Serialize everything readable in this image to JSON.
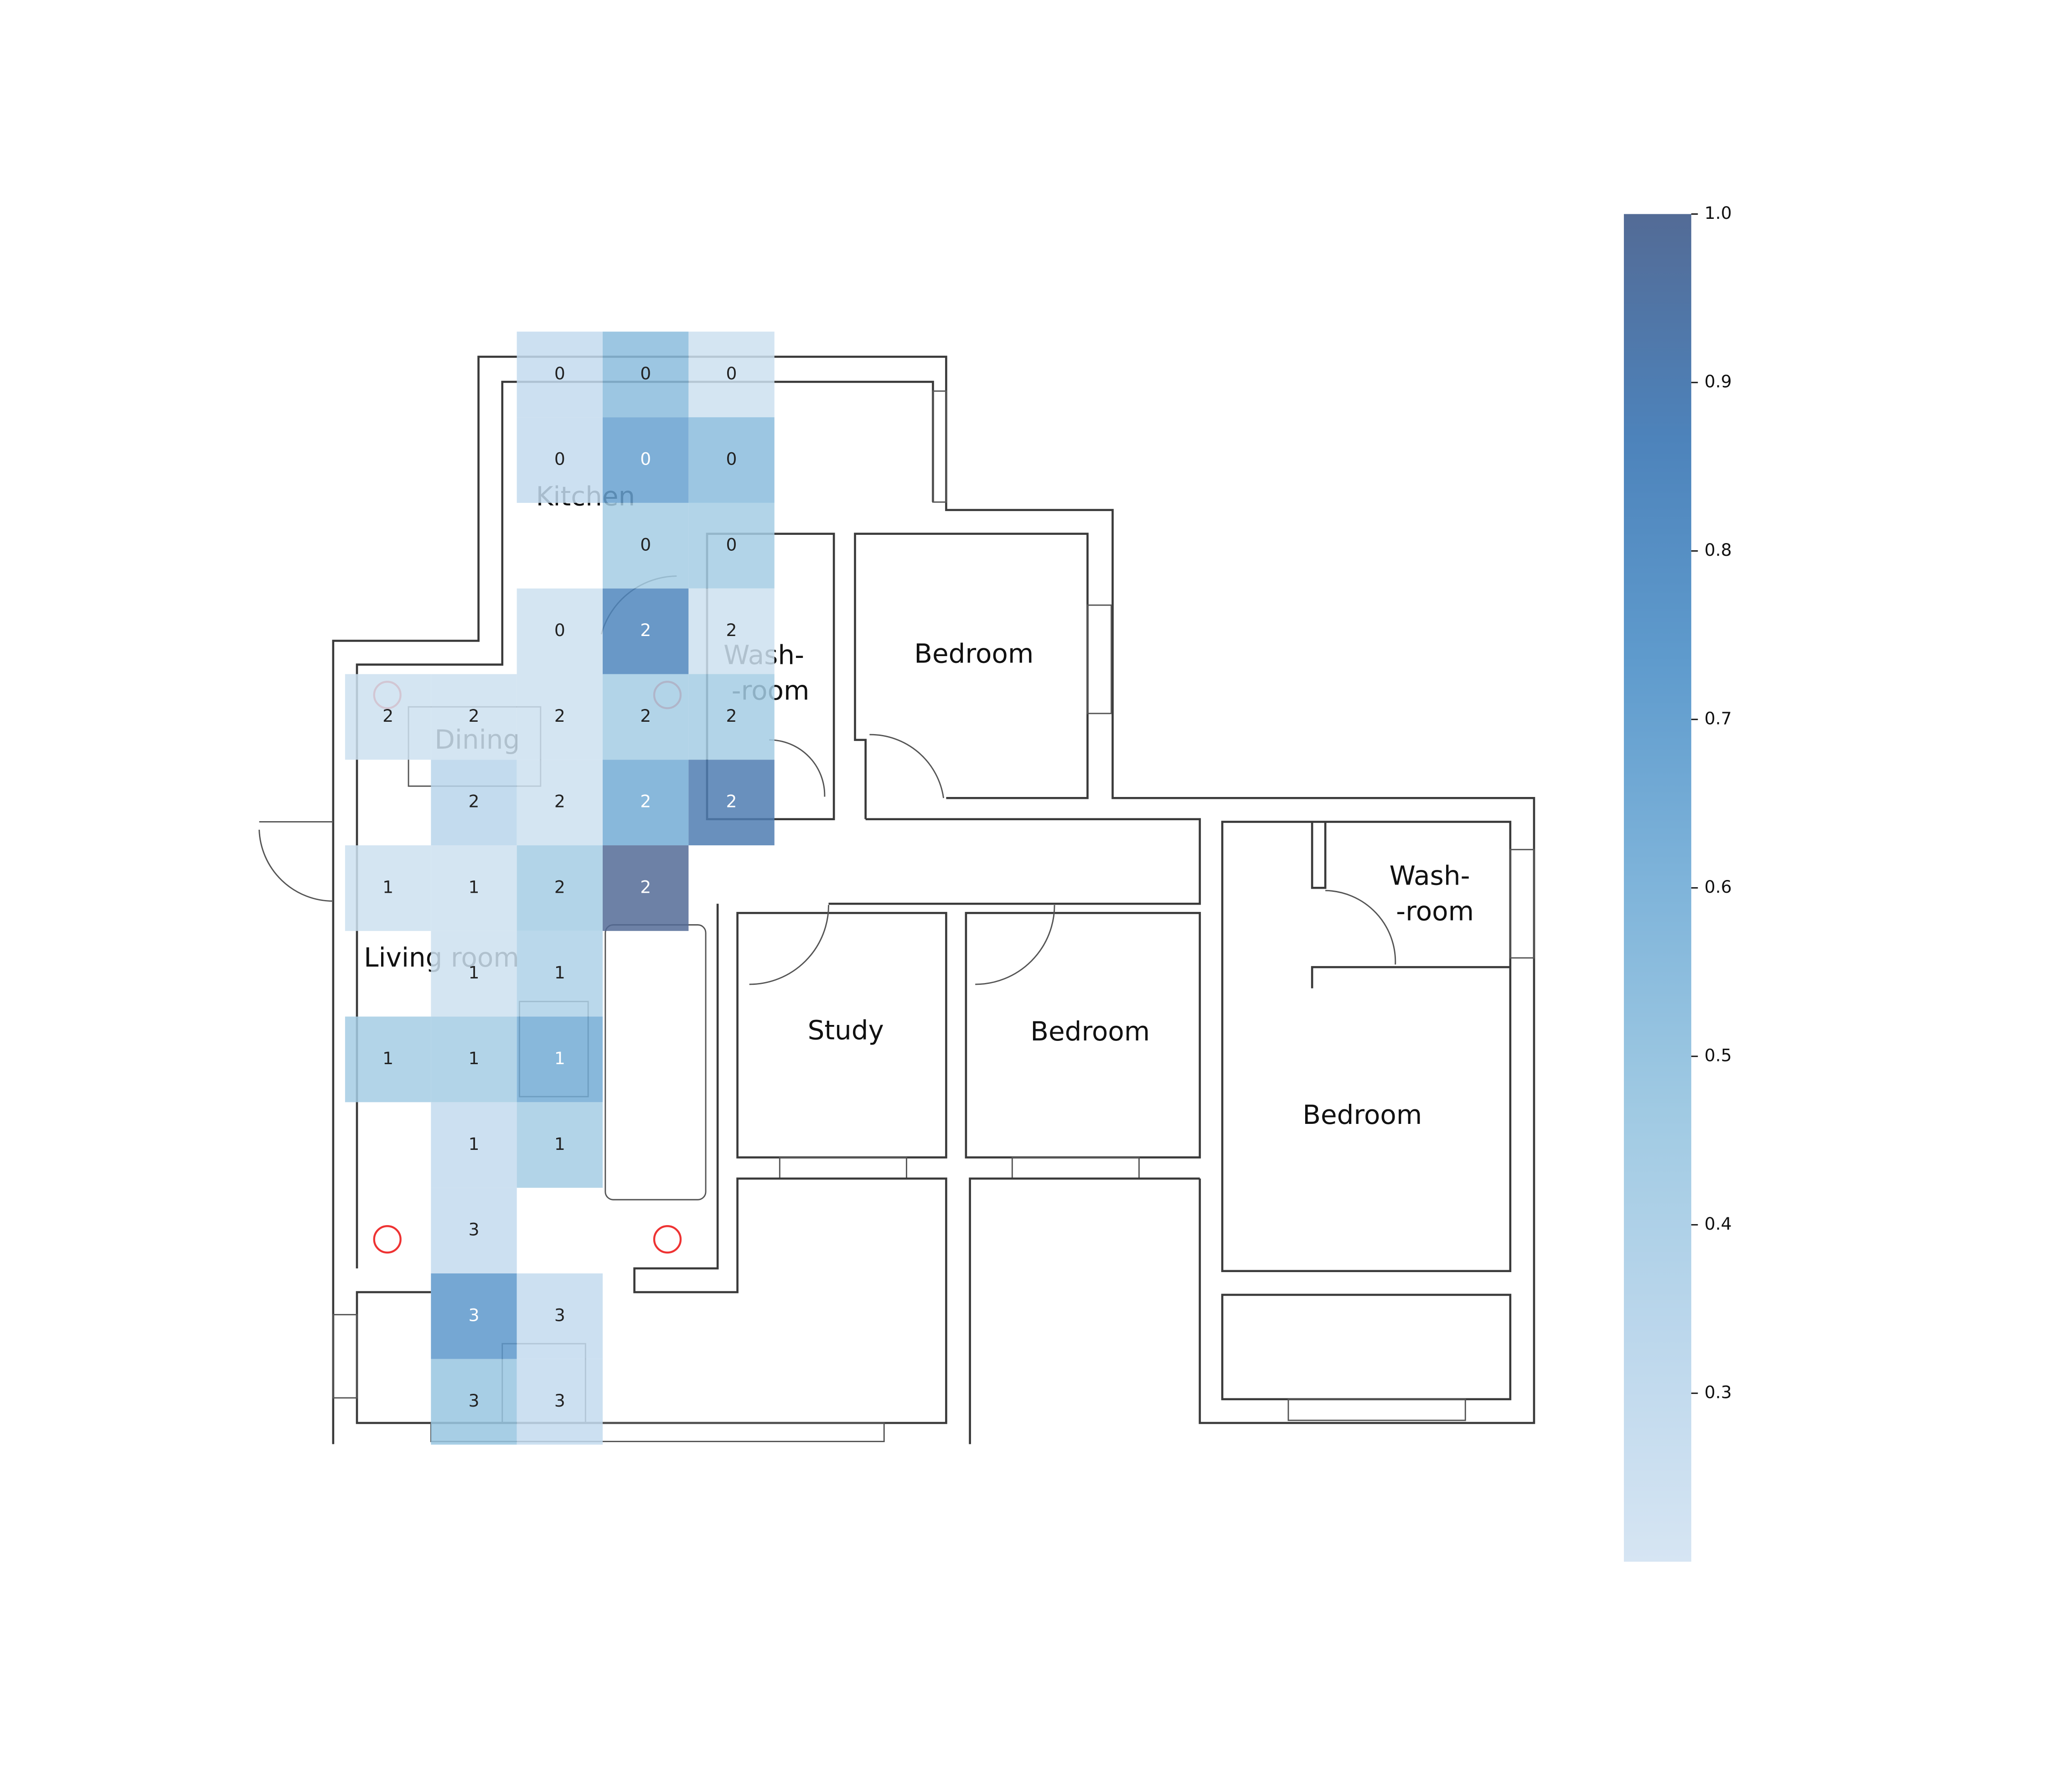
{
  "chart_data": {
    "type": "heatmap",
    "values": [
      [
        null,
        null,
        0.3,
        0.55,
        0.25
      ],
      [
        null,
        null,
        0.3,
        0.7,
        0.55
      ],
      [
        null,
        null,
        null,
        0.45,
        0.45
      ],
      [
        null,
        null,
        0.25,
        0.85,
        0.25
      ],
      [
        0.25,
        0.25,
        0.25,
        0.45,
        0.45
      ],
      [
        null,
        0.35,
        0.25,
        0.65,
        0.9
      ],
      [
        0.25,
        0.25,
        0.45,
        1.0,
        null
      ],
      [
        null,
        0.25,
        0.4,
        null,
        null
      ],
      [
        0.45,
        0.45,
        0.65,
        null,
        null
      ],
      [
        null,
        0.3,
        0.45,
        null,
        null
      ],
      [
        null,
        0.3,
        null,
        null,
        null
      ],
      [
        null,
        0.75,
        0.3,
        null,
        null
      ],
      [
        null,
        0.5,
        0.3,
        null,
        null
      ]
    ],
    "cell_labels": [
      [
        null,
        null,
        0,
        0,
        0
      ],
      [
        null,
        null,
        0,
        0,
        0
      ],
      [
        null,
        null,
        null,
        0,
        0
      ],
      [
        null,
        null,
        0,
        2,
        2
      ],
      [
        2,
        2,
        2,
        2,
        2
      ],
      [
        null,
        2,
        2,
        2,
        2
      ],
      [
        1,
        1,
        2,
        2,
        null
      ],
      [
        null,
        1,
        1,
        null,
        null
      ],
      [
        1,
        1,
        1,
        null,
        null
      ],
      [
        null,
        1,
        1,
        null,
        null
      ],
      [
        null,
        3,
        null,
        null,
        null
      ],
      [
        null,
        3,
        3,
        null,
        null
      ],
      [
        null,
        3,
        3,
        null,
        null
      ]
    ],
    "colormap": [
      "#d6e5f3",
      "#bcd7ec",
      "#a0cae3",
      "#7fb4da",
      "#5f9bcd",
      "#4d83bb",
      "#536b96"
    ],
    "clim": [
      0.2,
      1.0
    ],
    "cticks": [
      0.3,
      0.4,
      0.5,
      0.6,
      0.7,
      0.8,
      0.9,
      {
        "value": 1,
        "label": "1.0"
      }
    ],
    "floor_plan_labels": [
      "Kitchen",
      "Wash-",
      "-room",
      "Bedroom",
      "Dining",
      "Wash-",
      "-room",
      "Living room",
      "Study",
      "Bedroom",
      "Bedroom"
    ]
  }
}
